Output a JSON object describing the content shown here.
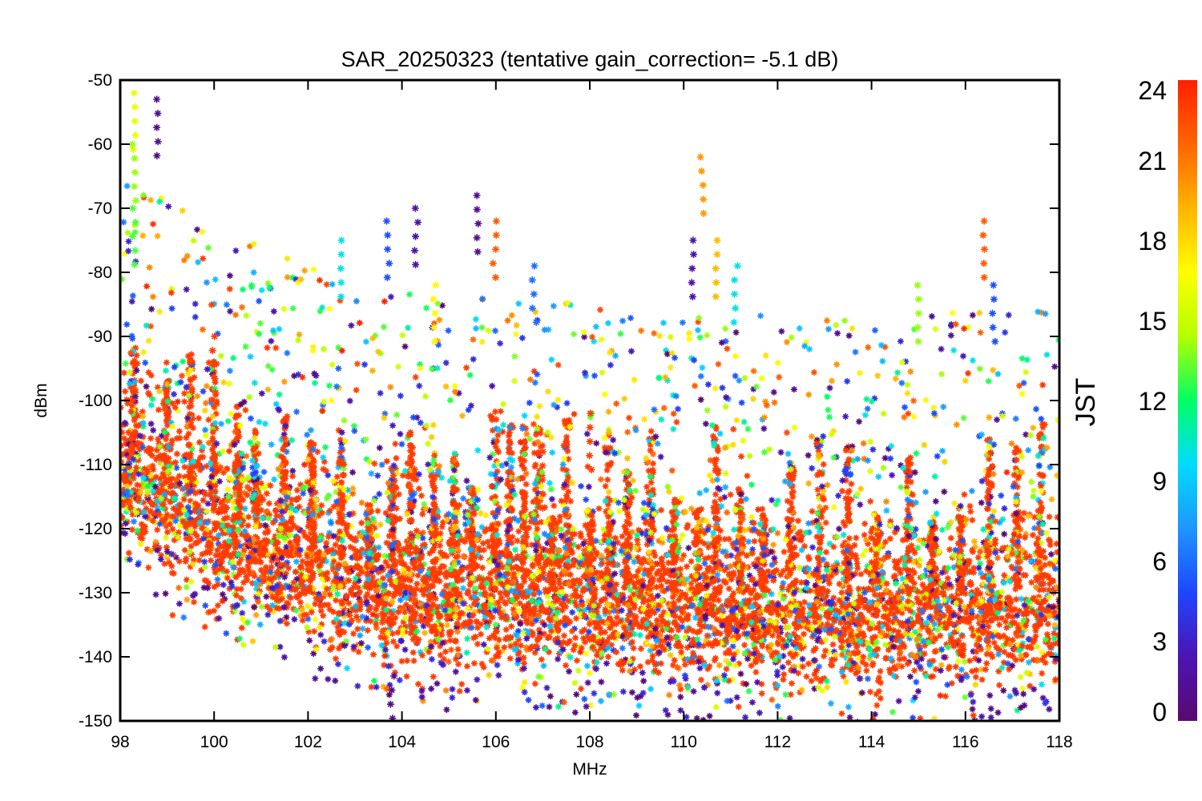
{
  "chart_data": {
    "type": "scatter",
    "title": "SAR_20250323 (tentative gain_correction= -5.1 dB)",
    "xlabel": "MHz",
    "ylabel": "dBm",
    "xlim": [
      98,
      118
    ],
    "ylim": [
      -150,
      -50
    ],
    "x_ticks": [
      "98",
      "100",
      "102",
      "104",
      "106",
      "108",
      "110",
      "112",
      "114",
      "116",
      "118"
    ],
    "y_ticks": [
      "-50",
      "-60",
      "-70",
      "-80",
      "-90",
      "-100",
      "-110",
      "-120",
      "-130",
      "-140",
      "-150"
    ],
    "marker": "asterisk",
    "grid": false,
    "colorbar": {
      "label": "JST",
      "range": [
        0,
        24
      ],
      "ticks": [
        "24",
        "21",
        "18",
        "15",
        "12",
        "9",
        "6",
        "3",
        "0"
      ],
      "colormap": [
        "#5a0a6e",
        "#4b14b4",
        "#1e46ff",
        "#1e96ff",
        "#00dcff",
        "#00ff64",
        "#b4ff00",
        "#ffff00",
        "#ffb400",
        "#ff6400",
        "#ff2000"
      ]
    },
    "noise_floor": [
      {
        "x": 98,
        "y": -112
      },
      {
        "x": 99,
        "y": -117
      },
      {
        "x": 100,
        "y": -121
      },
      {
        "x": 101,
        "y": -124
      },
      {
        "x": 102,
        "y": -127
      },
      {
        "x": 103,
        "y": -130
      },
      {
        "x": 104,
        "y": -131
      },
      {
        "x": 106,
        "y": -132
      },
      {
        "x": 108,
        "y": -133
      },
      {
        "x": 110,
        "y": -134
      },
      {
        "x": 112,
        "y": -134
      },
      {
        "x": 114,
        "y": -135
      },
      {
        "x": 116,
        "y": -134
      },
      {
        "x": 118,
        "y": -133
      }
    ],
    "strong_signals": [
      {
        "x": 98.3,
        "y": -52,
        "jst": 16
      },
      {
        "x": 98.3,
        "y": -60,
        "jst": 14
      },
      {
        "x": 98.3,
        "y": -70,
        "jst": 13
      },
      {
        "x": 98.8,
        "y": -53,
        "jst": 1
      },
      {
        "x": 100.0,
        "y": -90,
        "jst": 23
      },
      {
        "x": 102.7,
        "y": -75,
        "jst": 10
      },
      {
        "x": 103.7,
        "y": -72,
        "jst": 5
      },
      {
        "x": 104.3,
        "y": -70,
        "jst": 2
      },
      {
        "x": 105.6,
        "y": -68,
        "jst": 1
      },
      {
        "x": 106.0,
        "y": -72,
        "jst": 22
      },
      {
        "x": 106.8,
        "y": -79,
        "jst": 6
      },
      {
        "x": 110.2,
        "y": -75,
        "jst": 2
      },
      {
        "x": 110.4,
        "y": -62,
        "jst": 20
      },
      {
        "x": 110.7,
        "y": -75,
        "jst": 19
      },
      {
        "x": 111.1,
        "y": -79,
        "jst": 10
      },
      {
        "x": 115.0,
        "y": -82,
        "jst": 14
      },
      {
        "x": 116.4,
        "y": -72,
        "jst": 22
      },
      {
        "x": 116.6,
        "y": -82,
        "jst": 5
      },
      {
        "x": 108.0,
        "y": -102,
        "jst": 23
      },
      {
        "x": 107.0,
        "y": -108,
        "jst": 23
      },
      {
        "x": 104.7,
        "y": -82,
        "jst": 17
      },
      {
        "x": 103.8,
        "y": -143,
        "jst": 1
      },
      {
        "x": 116.2,
        "y": -150,
        "jst": 1
      }
    ],
    "dense_region": {
      "x_range": [
        98,
        118
      ],
      "y_range": [
        -146,
        -104
      ],
      "dominant_jst": 23
    }
  }
}
